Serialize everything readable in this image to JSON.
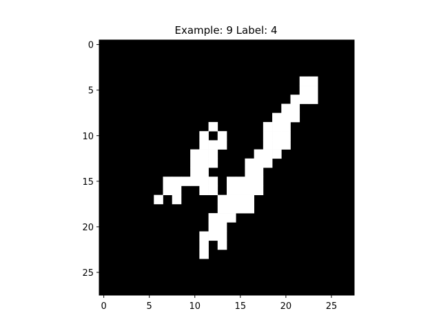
{
  "chart_data": {
    "type": "heatmap",
    "title": "Example: 9  Label: 4",
    "xlabel": "",
    "ylabel": "",
    "grid": false,
    "colormap": "gray",
    "xlim": [
      -0.5,
      27.5
    ],
    "ylim": [
      27.5,
      -0.5
    ],
    "x_ticks": [
      0,
      5,
      10,
      15,
      20,
      25
    ],
    "y_ticks": [
      0,
      5,
      10,
      15,
      20,
      25
    ],
    "rows": 28,
    "cols": 28,
    "on_pixels": [
      [
        4,
        22
      ],
      [
        4,
        23
      ],
      [
        5,
        22
      ],
      [
        5,
        23
      ],
      [
        6,
        21
      ],
      [
        6,
        22
      ],
      [
        6,
        23
      ],
      [
        7,
        20
      ],
      [
        7,
        21
      ],
      [
        8,
        19
      ],
      [
        8,
        20
      ],
      [
        8,
        21
      ],
      [
        9,
        12
      ],
      [
        9,
        18
      ],
      [
        9,
        19
      ],
      [
        9,
        20
      ],
      [
        10,
        11
      ],
      [
        10,
        13
      ],
      [
        10,
        18
      ],
      [
        10,
        19
      ],
      [
        10,
        20
      ],
      [
        11,
        11
      ],
      [
        11,
        12
      ],
      [
        11,
        13
      ],
      [
        11,
        18
      ],
      [
        11,
        19
      ],
      [
        11,
        20
      ],
      [
        12,
        10
      ],
      [
        12,
        11
      ],
      [
        12,
        12
      ],
      [
        12,
        17
      ],
      [
        12,
        18
      ],
      [
        12,
        19
      ],
      [
        13,
        10
      ],
      [
        13,
        11
      ],
      [
        13,
        12
      ],
      [
        13,
        16
      ],
      [
        13,
        17
      ],
      [
        13,
        18
      ],
      [
        14,
        10
      ],
      [
        14,
        11
      ],
      [
        14,
        16
      ],
      [
        14,
        17
      ],
      [
        15,
        7
      ],
      [
        15,
        8
      ],
      [
        15,
        9
      ],
      [
        15,
        10
      ],
      [
        15,
        11
      ],
      [
        15,
        12
      ],
      [
        15,
        14
      ],
      [
        15,
        15
      ],
      [
        15,
        16
      ],
      [
        15,
        17
      ],
      [
        16,
        7
      ],
      [
        16,
        8
      ],
      [
        16,
        11
      ],
      [
        16,
        12
      ],
      [
        16,
        14
      ],
      [
        16,
        15
      ],
      [
        16,
        16
      ],
      [
        16,
        17
      ],
      [
        17,
        6
      ],
      [
        17,
        8
      ],
      [
        17,
        13
      ],
      [
        17,
        14
      ],
      [
        17,
        15
      ],
      [
        17,
        16
      ],
      [
        18,
        13
      ],
      [
        18,
        14
      ],
      [
        18,
        15
      ],
      [
        18,
        16
      ],
      [
        19,
        12
      ],
      [
        19,
        13
      ],
      [
        19,
        14
      ],
      [
        20,
        12
      ],
      [
        20,
        13
      ],
      [
        21,
        11
      ],
      [
        21,
        12
      ],
      [
        21,
        13
      ],
      [
        22,
        11
      ],
      [
        22,
        13
      ],
      [
        23,
        11
      ]
    ]
  }
}
